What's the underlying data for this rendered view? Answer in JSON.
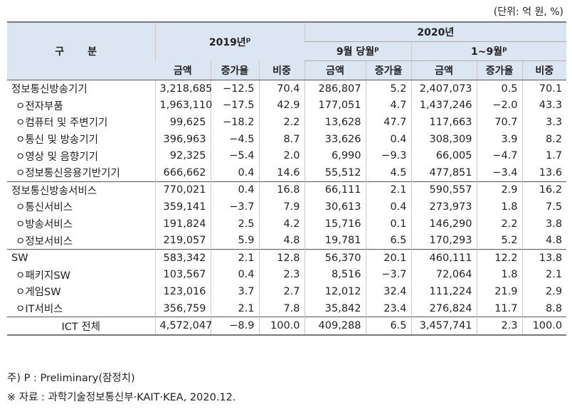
{
  "unit_note": "(단위: 억 원, %)",
  "header": {
    "gubun": "구 분",
    "y2019": "2019년",
    "y2019_sup": "p",
    "y2020": "2020년",
    "sep": "9월 당월",
    "sep_sup": "p",
    "jan_sep": "1~9월",
    "jan_sep_sup": "p",
    "amount": "금액",
    "growth": "증가율",
    "share": "비중"
  },
  "rows": [
    {
      "label": "정보통신방송기기",
      "a19": "3,218,685",
      "g19": "−12.5",
      "s19": "70.4",
      "a9": "286,807",
      "g9": "5.2",
      "a19s": "2,407,073",
      "g19s": "0.5",
      "s19s": "70.1"
    },
    {
      "label": "ㅇ전자부품",
      "a19": "1,963,110",
      "g19": "−17.5",
      "s19": "42.9",
      "a9": "177,051",
      "g9": "4.7",
      "a19s": "1,437,246",
      "g19s": "−2.0",
      "s19s": "43.3"
    },
    {
      "label": "ㅇ컴퓨터 및 주변기기",
      "a19": "99,625",
      "g19": "−18.2",
      "s19": "2.2",
      "a9": "13,628",
      "g9": "47.7",
      "a19s": "117,663",
      "g19s": "70.7",
      "s19s": "3.3"
    },
    {
      "label": "ㅇ통신 및 방송기기",
      "a19": "396,963",
      "g19": "−4.5",
      "s19": "8.7",
      "a9": "33,626",
      "g9": "0.4",
      "a19s": "308,309",
      "g19s": "3.9",
      "s19s": "8.2"
    },
    {
      "label": "ㅇ영상 및 음향기기",
      "a19": "92,325",
      "g19": "−5.4",
      "s19": "2.0",
      "a9": "6,990",
      "g9": "−9.3",
      "a19s": "66,005",
      "g19s": "−4.7",
      "s19s": "1.7"
    },
    {
      "label": "ㅇ정보통신응용기반기기",
      "a19": "666,662",
      "g19": "0.4",
      "s19": "14.6",
      "a9": "55,512",
      "g9": "4.5",
      "a19s": "477,851",
      "g19s": "−3.4",
      "s19s": "13.6"
    },
    {
      "label": "정보통신방송서비스",
      "a19": "770,021",
      "g19": "0.4",
      "s19": "16.8",
      "a9": "66,111",
      "g9": "2.1",
      "a19s": "590,557",
      "g19s": "2.9",
      "s19s": "16.2"
    },
    {
      "label": "ㅇ통신서비스",
      "a19": "359,141",
      "g19": "−3.7",
      "s19": "7.9",
      "a9": "30,613",
      "g9": "0.4",
      "a19s": "273,973",
      "g19s": "1.8",
      "s19s": "7.5"
    },
    {
      "label": "ㅇ방송서비스",
      "a19": "191,824",
      "g19": "2.5",
      "s19": "4.2",
      "a9": "15,716",
      "g9": "0.1",
      "a19s": "146,290",
      "g19s": "2.2",
      "s19s": "3.8"
    },
    {
      "label": "ㅇ정보서비스",
      "a19": "219,057",
      "g19": "5.9",
      "s19": "4.8",
      "a9": "19,781",
      "g9": "6.5",
      "a19s": "170,293",
      "g19s": "5.2",
      "s19s": "4.8"
    },
    {
      "label": "SW",
      "a19": "583,342",
      "g19": "2.1",
      "s19": "12.8",
      "a9": "56,370",
      "g9": "20.1",
      "a19s": "460,111",
      "g19s": "12.2",
      "s19s": "13.8"
    },
    {
      "label": "ㅇ패키지SW",
      "a19": "103,567",
      "g19": "0.4",
      "s19": "2.3",
      "a9": "8,516",
      "g9": "−3.7",
      "a19s": "72,064",
      "g19s": "1.8",
      "s19s": "2.1"
    },
    {
      "label": "ㅇ게임SW",
      "a19": "123,016",
      "g19": "3.7",
      "s19": "2.7",
      "a9": "12,012",
      "g9": "32.4",
      "a19s": "111,224",
      "g19s": "21.9",
      "s19s": "2.9"
    },
    {
      "label": "ㅇIT서비스",
      "a19": "356,759",
      "g19": "2.1",
      "s19": "7.8",
      "a9": "35,842",
      "g9": "23.4",
      "a19s": "276,824",
      "g19s": "11.7",
      "s19s": "8.8"
    },
    {
      "label": "ICT 전체",
      "a19": "4,572,047",
      "g19": "−8.9",
      "s19": "100.0",
      "a9": "409,288",
      "g9": "6.5",
      "a19s": "3,457,741",
      "g19s": "2.3",
      "s19s": "100.0"
    }
  ],
  "notes": {
    "note1": "주) P : Preliminary(잠정치)",
    "note2": "※ 자료 : 과학기술정보통신부·KAIT·KEA, 2020.12."
  }
}
